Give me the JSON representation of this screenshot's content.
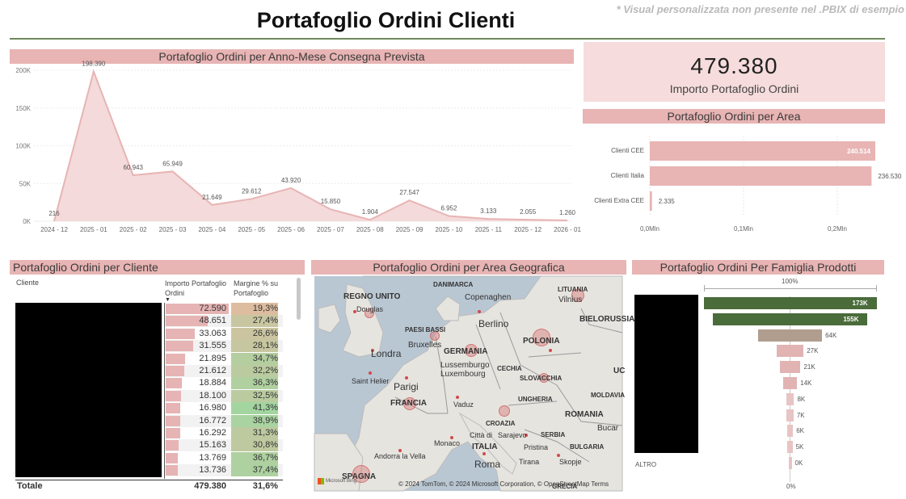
{
  "header": {
    "title": "Portafoglio Ordini Clienti",
    "note": "* Visual personalizzata non presente nel .PBIX di esempio"
  },
  "kpi": {
    "value": "479.380",
    "label": "Importo Portafoglio Ordini"
  },
  "area_chart": {
    "title": "Portafoglio Ordini per Anno-Mese Consegna Prevista",
    "y_ticks": [
      "200K",
      "150K",
      "100K",
      "50K",
      "0K"
    ],
    "labels": [
      "216",
      "198.390",
      "60.943",
      "65.949",
      "21.649",
      "29.612",
      "43.920",
      "15.850",
      "1.904",
      "27.547",
      "6.952",
      "3.133",
      "2.055",
      "1.260"
    ]
  },
  "bar_chart": {
    "title": "Portafoglio Ordini per Area",
    "x_ticks": [
      "0,0Mln",
      "0,1Mln",
      "0,2Mln"
    ],
    "data_labels": [
      "240.514",
      "236.530",
      "2.335"
    ]
  },
  "clients": {
    "title": "Portafoglio Ordini per Cliente",
    "col_cliente": "Cliente",
    "col_importo": "Importo Portafoglio Ordini",
    "col_margine": "Margine % su Portafoglio",
    "rows": [
      {
        "importo": "72.590",
        "margine": "19,3%"
      },
      {
        "importo": "48.651",
        "margine": "27,4%"
      },
      {
        "importo": "33.063",
        "margine": "26,6%"
      },
      {
        "importo": "31.555",
        "margine": "28,1%"
      },
      {
        "importo": "21.895",
        "margine": "34,7%"
      },
      {
        "importo": "21.612",
        "margine": "32,2%"
      },
      {
        "importo": "18.884",
        "margine": "36,3%"
      },
      {
        "importo": "18.100",
        "margine": "32,5%"
      },
      {
        "importo": "16.980",
        "margine": "41,3%"
      },
      {
        "importo": "16.772",
        "margine": "38,9%"
      },
      {
        "importo": "16.292",
        "margine": "31,3%"
      },
      {
        "importo": "15.163",
        "margine": "30,8%"
      },
      {
        "importo": "13.769",
        "margine": "36,7%"
      },
      {
        "importo": "13.736",
        "margine": "37,4%"
      }
    ],
    "total_label": "Totale",
    "total_importo": "479.380",
    "total_margine": "31,6%"
  },
  "map": {
    "title": "Portafoglio Ordini per Area Geografica",
    "countries": [
      "REGNO UNITO",
      "PAESI BASSI",
      "GERMANIA",
      "POLONIA",
      "LITUANIA",
      "BIELORUSSIA",
      "CECHIA",
      "SLOVACCHIA",
      "UNGHERIA",
      "FRANCIA",
      "ROMANIA",
      "CROAZIA",
      "SERBIA",
      "BULGARIA",
      "MOLDAVIA",
      "ITALIA",
      "SPAGNA",
      "GRECIA",
      "DANIMARCA",
      "UC"
    ],
    "cities": [
      "Copenaghen",
      "Douglas",
      "Berlino",
      "Vilnius",
      "Londra",
      "Bruxelles",
      "Lussemburgo",
      "Luxembourg",
      "Saint Helier",
      "Parigi",
      "Vaduz",
      "Monaco",
      "Città di",
      "Sarajevo",
      "Pristina",
      "Andorra la Vella",
      "Roma",
      "Tirana",
      "Skopje",
      "Bucar"
    ],
    "attribution": "© 2024 TomTom, © 2024 Microsoft Corporation, © OpenStreetMap   Terms",
    "bing": "Microsoft Bing"
  },
  "family": {
    "title": "Portafoglio Ordini Per Famiglia Prodotti",
    "top_label": "100%",
    "bottom_label": "0%",
    "altro_label": "ALTRO",
    "bars": [
      "173K",
      "155K",
      "64K",
      "27K",
      "21K",
      "14K",
      "8K",
      "7K",
      "6K",
      "5K",
      "0K"
    ]
  },
  "chart_data": [
    {
      "type": "area",
      "title": "Portafoglio Ordini per Anno-Mese Consegna Prevista",
      "categories": [
        "2024 - 12",
        "2025 - 01",
        "2025 - 02",
        "2025 - 03",
        "2025 - 04",
        "2025 - 05",
        "2025 - 06",
        "2025 - 07",
        "2025 - 08",
        "2025 - 09",
        "2025 - 10",
        "2025 - 11",
        "2025 - 12",
        "2026 - 01"
      ],
      "values": [
        216,
        198390,
        60943,
        65949,
        21649,
        29612,
        43920,
        15850,
        1904,
        27547,
        6952,
        3133,
        2055,
        1260
      ],
      "ylim": [
        0,
        200000
      ],
      "grid": true,
      "color": "#e8b4b4"
    },
    {
      "type": "bar",
      "orientation": "horizontal",
      "title": "Portafoglio Ordini per Area",
      "categories": [
        "Clienti CEE",
        "Clienti Italia",
        "Clienti Extra CEE"
      ],
      "values": [
        240514,
        236530,
        2335
      ],
      "xlim": [
        0,
        250000
      ],
      "color": "#e8b4b4"
    },
    {
      "type": "bar",
      "title": "Portafoglio Ordini Per Famiglia Prodotti",
      "values": [
        173,
        155,
        64,
        27,
        21,
        14,
        8,
        7,
        6,
        5,
        0
      ],
      "unit": "K",
      "colors": [
        "#4a6b3a",
        "#4a6b3a",
        "#b19d8d",
        "#e2b3b3",
        "#e2b3b3",
        "#e2b3b3",
        "#e8c4c4",
        "#e8c4c4",
        "#e8c4c4",
        "#e8c4c4",
        "#e8c4c4"
      ]
    }
  ]
}
